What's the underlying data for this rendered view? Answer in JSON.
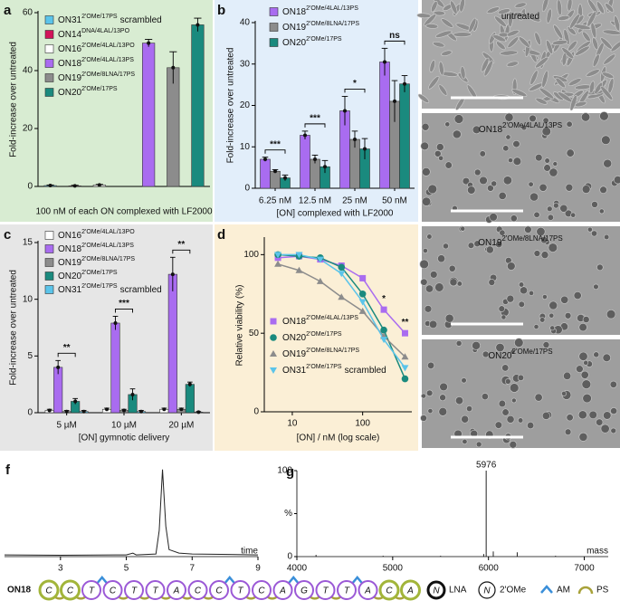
{
  "chart_data": [
    {
      "type": "bar",
      "panel": "a",
      "ylabel": "Fold-increase over untreated",
      "xlabel": "100 nM of each ON complexed with LF2000",
      "ylim": [
        0,
        60
      ],
      "yticks": [
        0,
        20,
        40,
        60
      ],
      "series": [
        {
          "name": "ON31",
          "suffix": "2'OMe/17PS",
          "note": "scrambled",
          "color": "#5bc4ea",
          "values": [
            0.3
          ],
          "errors": [
            0.2
          ]
        },
        {
          "name": "ON14",
          "suffix": "DNA/4LAL/13PO",
          "color": "#d2145a",
          "values": [
            0.2
          ],
          "errors": [
            0.2
          ]
        },
        {
          "name": "ON16",
          "suffix": "2'OMe/4LAL/13PO",
          "color": "#ffffff",
          "values": [
            0.5
          ],
          "errors": [
            0.2
          ]
        },
        {
          "name": "ON18",
          "suffix": "2'OMe/4LAL/13PS",
          "color": "#a96cf0",
          "values": [
            49.5
          ],
          "errors": [
            1.3
          ]
        },
        {
          "name": "ON19",
          "suffix": "2'OMe/8LNA/17PS",
          "color": "#8c8c8c",
          "values": [
            41
          ],
          "errors": [
            5.5
          ]
        },
        {
          "name": "ON20",
          "suffix": "2'OMe/17PS",
          "color": "#1a8a7e",
          "values": [
            55.8
          ],
          "errors": [
            2.3
          ]
        }
      ]
    },
    {
      "type": "bar",
      "panel": "b",
      "ylabel": "Fold-increase over untreated",
      "xlabel": "[ON] complexed with LF2000",
      "categories": [
        "6.25 nM",
        "12.5 nM",
        "25 nM",
        "50 nM"
      ],
      "significance": [
        "***",
        "***",
        "*",
        "ns"
      ],
      "ylim": [
        0,
        40
      ],
      "yticks": [
        0,
        10,
        20,
        30,
        40
      ],
      "series": [
        {
          "name": "ON18",
          "suffix": "2'OMe/4LAL/13PS",
          "color": "#a96cf0",
          "values": [
            7,
            12.8,
            18.7,
            30.5
          ],
          "errors": [
            0.5,
            1,
            3.5,
            3.3
          ]
        },
        {
          "name": "ON19",
          "suffix": "2'OMe/8LNA/17PS",
          "color": "#8c8c8c",
          "values": [
            4.1,
            7,
            11.8,
            21
          ],
          "errors": [
            0.4,
            1,
            2,
            5
          ]
        },
        {
          "name": "ON20",
          "suffix": "2'OMe/17PS",
          "color": "#1a8a7e",
          "values": [
            2.5,
            5.2,
            9.5,
            25.2
          ],
          "errors": [
            0.7,
            1.5,
            2.5,
            2
          ]
        }
      ]
    },
    {
      "type": "bar",
      "panel": "c",
      "ylabel": "Fold-increase over untreated",
      "xlabel": "[ON] gymnotic delivery",
      "categories": [
        "5 µM",
        "10 µM",
        "20 µM"
      ],
      "significance": [
        "**",
        "***",
        "**"
      ],
      "ylim": [
        0,
        15
      ],
      "yticks": [
        0,
        5,
        10,
        15
      ],
      "series": [
        {
          "name": "ON16",
          "suffix": "2'OMe/4LAL/13PO",
          "color": "#ffffff",
          "values": [
            0.2,
            0.3,
            0.3
          ],
          "errors": [
            0.1,
            0.1,
            0.1
          ]
        },
        {
          "name": "ON18",
          "suffix": "2'OMe/4LAL/13PS",
          "color": "#a96cf0",
          "values": [
            4,
            7.9,
            12.2
          ],
          "errors": [
            0.6,
            0.6,
            1.5
          ]
        },
        {
          "name": "ON19",
          "suffix": "2'OMe/8LNA/17PS",
          "color": "#8c8c8c",
          "values": [
            0.1,
            0.2,
            0.3
          ],
          "errors": [
            0.1,
            0.1,
            0.1
          ]
        },
        {
          "name": "ON20",
          "suffix": "2'OMe/17PS",
          "color": "#1a8a7e",
          "values": [
            1,
            1.6,
            2.5
          ],
          "errors": [
            0.25,
            0.5,
            0.2
          ]
        },
        {
          "name": "ON31",
          "suffix": "2'OMe/17PS",
          "note": "scrambled",
          "color": "#5bc4ea",
          "values": [
            0.1,
            0.1,
            0.05
          ],
          "errors": [
            0.1,
            0.1,
            0.05
          ]
        }
      ]
    },
    {
      "type": "scatter",
      "panel": "d",
      "ylabel": "Relative viability (%)",
      "xlabel": "[ON] / nM (log scale)",
      "log_x": true,
      "x": [
        6.25,
        12.5,
        25,
        50,
        100,
        200,
        400
      ],
      "xlim": [
        4,
        500
      ],
      "xticks": [
        10,
        100
      ],
      "ylim": [
        0,
        110
      ],
      "yticks": [
        0,
        50,
        100
      ],
      "annotations": [
        {
          "x": 200,
          "text": "*"
        },
        {
          "x": 400,
          "text": "**"
        }
      ],
      "series": [
        {
          "name": "ON18",
          "suffix": "2'OMe/4LAL/13PS",
          "color": "#a96cf0",
          "marker": "square",
          "values": [
            98,
            99,
            97,
            93,
            85,
            65,
            50
          ]
        },
        {
          "name": "ON20",
          "suffix": "2'OMe/17PS",
          "color": "#1a8a7e",
          "marker": "circle",
          "values": [
            100,
            99,
            98,
            92,
            75,
            52,
            21
          ]
        },
        {
          "name": "ON19",
          "suffix": "2'OMe/8LNA/17PS",
          "color": "#8c8c8c",
          "marker": "triangle",
          "values": [
            94,
            90,
            83,
            73,
            64,
            48,
            35
          ]
        },
        {
          "name": "ON31",
          "suffix": "2'OMe/17PS",
          "note": "scrambled",
          "color": "#5bc4ea",
          "marker": "triangle-down",
          "values": [
            100,
            100,
            97,
            88,
            70,
            46,
            28
          ]
        }
      ]
    },
    {
      "type": "line",
      "panel": "f",
      "xlabel": "time",
      "color": "#222222",
      "x": [
        1.3,
        3,
        5,
        5.2,
        5.3,
        5.9,
        6.0,
        6.1,
        6.2,
        6.3,
        6.6,
        7,
        9
      ],
      "values": [
        0.02,
        0.015,
        0.02,
        0.04,
        0.02,
        0.03,
        0.3,
        1.0,
        0.35,
        0.08,
        0.04,
        0.03,
        0.02
      ],
      "xlim": [
        1.3,
        9
      ],
      "xticks": [
        3,
        5,
        7,
        9
      ],
      "ylim": [
        0,
        1.05
      ]
    },
    {
      "type": "stem",
      "panel": "g",
      "xlabel": "mass",
      "color": "#222222",
      "x": [
        4200,
        4900,
        5500,
        5950,
        5976,
        6050,
        6300,
        6700
      ],
      "values": [
        2,
        1,
        1,
        3,
        100,
        6,
        5,
        1
      ],
      "xlim": [
        4000,
        7250
      ],
      "xticks": [
        4000,
        5000,
        6000,
        7000
      ],
      "ylim": [
        0,
        100
      ],
      "yticks": [
        0,
        {
          "value": 50,
          "label": "%"
        },
        100
      ]
    }
  ],
  "micrographs": {
    "panel": "e",
    "labels": [
      {
        "name": "untreated"
      },
      {
        "name": "ON18",
        "suffix": "2'OMe/4LAL/13PS"
      },
      {
        "name": "ON19",
        "suffix": "2'OMe/8LNA/17PS"
      },
      {
        "name": "ON20",
        "suffix": "2'OMe/17PS"
      }
    ]
  },
  "sequence": {
    "label": "ON18",
    "bases": [
      "C",
      "C",
      "T",
      "C",
      "T",
      "T",
      "A",
      "C",
      "C",
      "T",
      "C",
      "A",
      "G",
      "T",
      "T",
      "A",
      "C",
      "A"
    ],
    "modifications": [
      "LNA",
      "LNA",
      "2'OMe",
      "2'OMe",
      "2'OMe",
      "2'OMe",
      "2'OMe",
      "2'OMe",
      "2'OMe",
      "2'OMe",
      "2'OMe",
      "2'OMe",
      "2'OMe",
      "2'OMe",
      "2'OMe",
      "2'OMe",
      "LNA",
      "LNA"
    ],
    "linkages": [
      "PS",
      "PS",
      "AM",
      "PS",
      "PS",
      "PS",
      "PS",
      "PS",
      "AM",
      "PS",
      "PS",
      "AM",
      "PS",
      "PS",
      "AM",
      "PS",
      "PS"
    ],
    "legend": [
      {
        "glyph": "N",
        "label": "LNA"
      },
      {
        "glyph": "N",
        "label": "2'OMe"
      },
      {
        "label": "AM"
      },
      {
        "label": "PS"
      }
    ]
  }
}
